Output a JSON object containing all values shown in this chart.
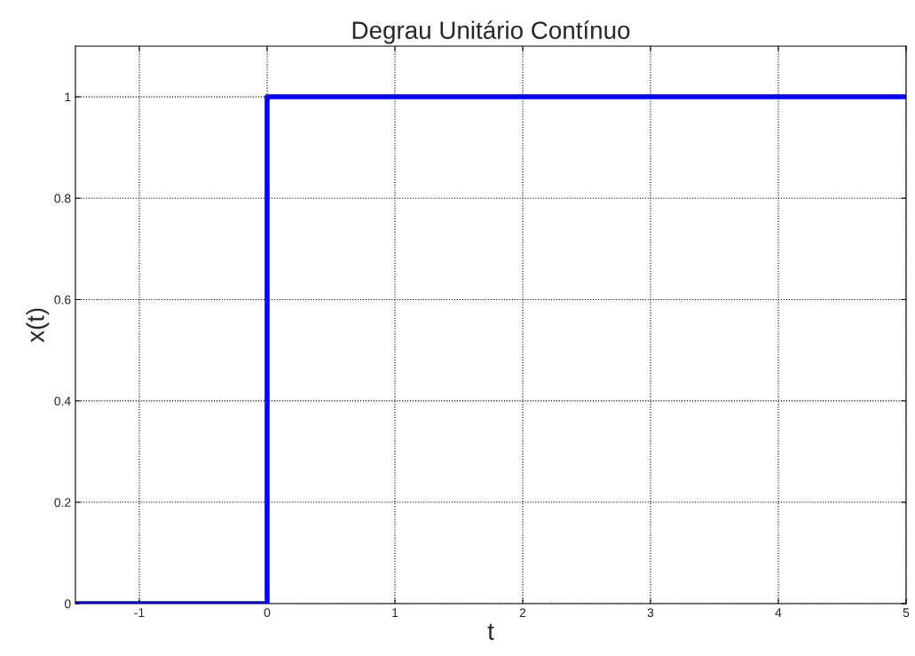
{
  "chart_data": {
    "type": "line",
    "title": "Degrau Unitário Contínuo",
    "xlabel": "t",
    "ylabel": "x(t)",
    "x": [
      -1.5,
      0,
      0,
      5
    ],
    "series": [
      {
        "color": "#0000ff",
        "values": [
          0,
          0,
          1,
          1
        ]
      }
    ],
    "xlim": [
      -1.5,
      5
    ],
    "xticks": [
      -1,
      0,
      1,
      2,
      3,
      4,
      5
    ],
    "ylim": [
      0,
      1.1
    ],
    "yticks": [
      0,
      0.2,
      0.4,
      0.6,
      0.8,
      1
    ],
    "grid": true,
    "line_style": "solid"
  }
}
